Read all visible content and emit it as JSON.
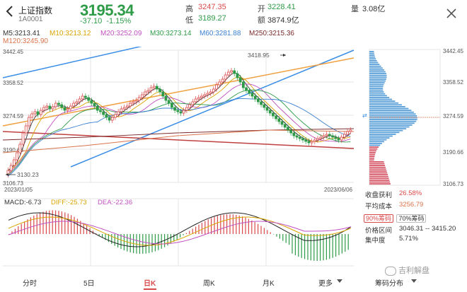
{
  "header": {
    "name": "上证指数",
    "code": "1A0001",
    "price": "3195.34",
    "change": "-37.10",
    "change_pct": "-1.15%",
    "high_label": "高",
    "high": "3247.35",
    "low_label": "低",
    "low": "3189.27",
    "open_label": "开",
    "open": "3228.41",
    "amount_label": "额",
    "amount": "3874.9亿",
    "volume_label": "量",
    "volume": "3.08亿"
  },
  "ma": {
    "ma5": "M5:3213.41",
    "ma10": "M10:3213.12",
    "ma20": "M20:3252.09",
    "ma30": "M30:3273.14",
    "ma60": "M60:3281.88",
    "ma250": "M250:3215.36",
    "ma120": "M120:3245.90",
    "colors": {
      "ma5": "#333333",
      "ma10": "#d9a400",
      "ma20": "#c050c0",
      "ma30": "#2e9b48",
      "ma60": "#3a7fd0",
      "ma250": "#7a2a2a",
      "ma120": "#d9734a"
    }
  },
  "chart": {
    "y_labels": [
      "3442.45",
      "3358.52",
      "3274.59",
      "3190.66",
      "3106.73"
    ],
    "high_mark": "3418.95",
    "low_mark": "3130.23",
    "date_start": "2023/01/05",
    "date_end": "2023/06/06"
  },
  "macd": {
    "macd_text": "MACD:-6.73",
    "diff_text": "DIFF:-25.73",
    "dea_text": "DEA:-22.36"
  },
  "distribution": {
    "y_labels": [
      "3442.45",
      "3358.52",
      "3274.59",
      "3190.66",
      "3106.73"
    ],
    "profit_label": "收盘获利",
    "profit_value": "26.58%",
    "cost_label": "平均成本",
    "cost_value": "3256.79",
    "chip90": "90%筹码",
    "chip70": "70%筹码",
    "range_label": "价格区间",
    "range_value": "3046.31 -- 3415.20",
    "conc_label": "集中度",
    "conc_value": "5.71%",
    "title": "筹码分布"
  },
  "tabs": [
    "分时",
    "5日",
    "日K",
    "周K",
    "月K",
    "更多"
  ],
  "watermark": "吉利解盘"
}
